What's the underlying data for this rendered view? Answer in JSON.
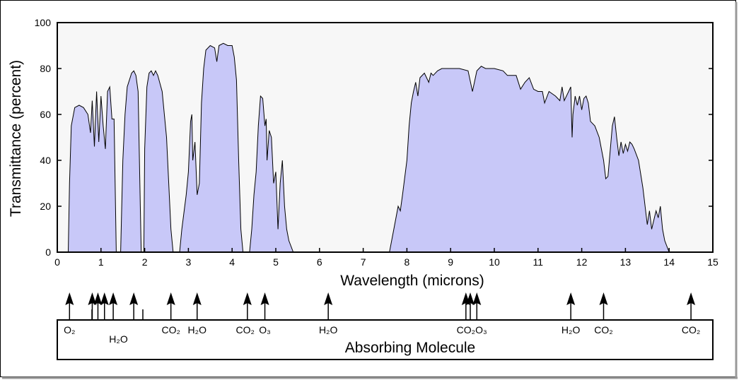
{
  "chart_data": {
    "type": "area",
    "title": "",
    "xlabel": "Wavelength (microns)",
    "ylabel": "Transmittance (percent)",
    "xlim": [
      0,
      15
    ],
    "ylim": [
      0,
      100
    ],
    "x_ticks": [
      0,
      1,
      2,
      3,
      4,
      5,
      6,
      7,
      8,
      9,
      10,
      11,
      12,
      13,
      14,
      15
    ],
    "y_ticks": [
      0,
      20,
      40,
      60,
      80,
      100
    ],
    "grid": false,
    "fill_color": "#c8c8f8",
    "line_color": "#000000",
    "series": [
      {
        "values": [
          [
            0.25,
            0
          ],
          [
            0.28,
            30
          ],
          [
            0.32,
            55
          ],
          [
            0.4,
            63
          ],
          [
            0.5,
            64
          ],
          [
            0.6,
            63
          ],
          [
            0.7,
            60
          ],
          [
            0.76,
            52
          ],
          [
            0.8,
            66
          ],
          [
            0.85,
            46
          ],
          [
            0.9,
            70
          ],
          [
            0.95,
            48
          ],
          [
            1.0,
            68
          ],
          [
            1.05,
            55
          ],
          [
            1.1,
            45
          ],
          [
            1.15,
            70
          ],
          [
            1.2,
            72
          ],
          [
            1.25,
            58
          ],
          [
            1.3,
            58
          ],
          [
            1.35,
            0
          ],
          [
            1.45,
            0
          ],
          [
            1.5,
            40
          ],
          [
            1.55,
            60
          ],
          [
            1.6,
            72
          ],
          [
            1.7,
            78
          ],
          [
            1.75,
            79
          ],
          [
            1.8,
            77
          ],
          [
            1.85,
            70
          ],
          [
            1.9,
            20
          ],
          [
            1.92,
            0
          ],
          [
            1.98,
            0
          ],
          [
            2.0,
            45
          ],
          [
            2.05,
            72
          ],
          [
            2.1,
            78
          ],
          [
            2.15,
            79
          ],
          [
            2.2,
            77
          ],
          [
            2.25,
            79
          ],
          [
            2.3,
            77
          ],
          [
            2.4,
            70
          ],
          [
            2.5,
            50
          ],
          [
            2.6,
            10
          ],
          [
            2.65,
            0
          ],
          [
            2.8,
            0
          ],
          [
            2.85,
            10
          ],
          [
            2.95,
            25
          ],
          [
            3.0,
            35
          ],
          [
            3.05,
            57
          ],
          [
            3.08,
            60
          ],
          [
            3.1,
            40
          ],
          [
            3.15,
            48
          ],
          [
            3.2,
            25
          ],
          [
            3.25,
            30
          ],
          [
            3.3,
            65
          ],
          [
            3.35,
            80
          ],
          [
            3.4,
            88
          ],
          [
            3.5,
            90
          ],
          [
            3.6,
            89
          ],
          [
            3.65,
            83
          ],
          [
            3.7,
            90
          ],
          [
            3.8,
            91
          ],
          [
            3.9,
            90
          ],
          [
            4.0,
            90
          ],
          [
            4.05,
            85
          ],
          [
            4.1,
            75
          ],
          [
            4.15,
            40
          ],
          [
            4.2,
            10
          ],
          [
            4.25,
            0
          ],
          [
            4.4,
            0
          ],
          [
            4.45,
            10
          ],
          [
            4.5,
            25
          ],
          [
            4.55,
            35
          ],
          [
            4.6,
            55
          ],
          [
            4.65,
            68
          ],
          [
            4.7,
            67
          ],
          [
            4.75,
            55
          ],
          [
            4.78,
            58
          ],
          [
            4.8,
            40
          ],
          [
            4.85,
            53
          ],
          [
            4.9,
            50
          ],
          [
            4.95,
            30
          ],
          [
            5.0,
            35
          ],
          [
            5.05,
            10
          ],
          [
            5.1,
            30
          ],
          [
            5.15,
            40
          ],
          [
            5.2,
            20
          ],
          [
            5.25,
            10
          ],
          [
            5.3,
            5
          ],
          [
            5.4,
            0
          ],
          [
            7.6,
            0
          ],
          [
            7.7,
            10
          ],
          [
            7.8,
            20
          ],
          [
            7.85,
            18
          ],
          [
            7.9,
            25
          ],
          [
            8.0,
            40
          ],
          [
            8.05,
            55
          ],
          [
            8.1,
            65
          ],
          [
            8.15,
            70
          ],
          [
            8.2,
            74
          ],
          [
            8.25,
            68
          ],
          [
            8.3,
            76
          ],
          [
            8.4,
            78
          ],
          [
            8.5,
            74
          ],
          [
            8.55,
            78
          ],
          [
            8.6,
            77
          ],
          [
            8.7,
            79
          ],
          [
            8.8,
            80
          ],
          [
            9.0,
            80
          ],
          [
            9.2,
            80
          ],
          [
            9.4,
            79
          ],
          [
            9.5,
            70
          ],
          [
            9.6,
            79
          ],
          [
            9.7,
            81
          ],
          [
            9.8,
            80
          ],
          [
            10.0,
            80
          ],
          [
            10.2,
            79
          ],
          [
            10.3,
            77
          ],
          [
            10.5,
            77
          ],
          [
            10.6,
            71
          ],
          [
            10.7,
            74
          ],
          [
            10.8,
            76
          ],
          [
            10.9,
            71
          ],
          [
            11.0,
            70
          ],
          [
            11.1,
            70
          ],
          [
            11.15,
            65
          ],
          [
            11.25,
            70
          ],
          [
            11.4,
            68
          ],
          [
            11.5,
            66
          ],
          [
            11.55,
            72
          ],
          [
            11.6,
            66
          ],
          [
            11.7,
            70
          ],
          [
            11.75,
            72
          ],
          [
            11.78,
            50
          ],
          [
            11.8,
            60
          ],
          [
            11.85,
            68
          ],
          [
            11.9,
            64
          ],
          [
            11.95,
            68
          ],
          [
            12.0,
            62
          ],
          [
            12.05,
            67
          ],
          [
            12.1,
            68
          ],
          [
            12.15,
            65
          ],
          [
            12.2,
            57
          ],
          [
            12.3,
            55
          ],
          [
            12.4,
            50
          ],
          [
            12.5,
            40
          ],
          [
            12.55,
            32
          ],
          [
            12.6,
            33
          ],
          [
            12.7,
            55
          ],
          [
            12.75,
            59
          ],
          [
            12.8,
            50
          ],
          [
            12.85,
            42
          ],
          [
            12.9,
            48
          ],
          [
            12.95,
            43
          ],
          [
            13.0,
            47
          ],
          [
            13.05,
            44
          ],
          [
            13.1,
            48
          ],
          [
            13.15,
            47
          ],
          [
            13.2,
            45
          ],
          [
            13.3,
            40
          ],
          [
            13.4,
            28
          ],
          [
            13.45,
            20
          ],
          [
            13.5,
            12
          ],
          [
            13.55,
            18
          ],
          [
            13.6,
            10
          ],
          [
            13.7,
            18
          ],
          [
            13.75,
            15
          ],
          [
            13.8,
            20
          ],
          [
            13.85,
            10
          ],
          [
            13.9,
            5
          ],
          [
            14.0,
            0
          ]
        ]
      }
    ]
  },
  "absorbing_molecule_panel": {
    "title": "Absorbing Molecule",
    "arrows_at_microns": [
      0.28,
      0.8,
      0.93,
      1.08,
      1.28,
      1.75,
      2.6,
      3.2,
      4.35,
      4.75,
      6.2,
      9.35,
      9.45,
      9.6,
      11.75,
      12.5,
      14.5
    ],
    "labels": [
      {
        "text": "O₂",
        "x": 0.28
      },
      {
        "text": "H₂O",
        "x": 1.35
      },
      {
        "text": "CO₂",
        "x": 2.6
      },
      {
        "text": "H₂O",
        "x": 3.2
      },
      {
        "text": "CO₂",
        "x": 4.3
      },
      {
        "text": "O₃",
        "x": 4.75
      },
      {
        "text": "H₂O",
        "x": 6.2
      },
      {
        "text": "CO₂",
        "x": 9.35
      },
      {
        "text": "O₃",
        "x": 9.7
      },
      {
        "text": "H₂O",
        "x": 11.75
      },
      {
        "text": "CO₂",
        "x": 12.5
      },
      {
        "text": "CO₂",
        "x": 14.5
      }
    ]
  }
}
